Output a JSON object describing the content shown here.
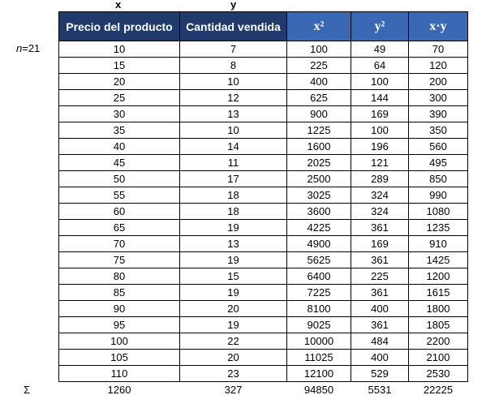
{
  "column_letters": [
    "x",
    "y"
  ],
  "n_label": {
    "symbol": "n",
    "value": "=21"
  },
  "table": {
    "headers": [
      "Precio del producto",
      "Cantidad vendida",
      "x²",
      "y²",
      "x·y"
    ],
    "rows": [
      [
        10,
        7,
        100,
        49,
        70
      ],
      [
        15,
        8,
        225,
        64,
        120
      ],
      [
        20,
        10,
        400,
        100,
        200
      ],
      [
        25,
        12,
        625,
        144,
        300
      ],
      [
        30,
        13,
        900,
        169,
        390
      ],
      [
        35,
        10,
        1225,
        100,
        350
      ],
      [
        40,
        14,
        1600,
        196,
        560
      ],
      [
        45,
        11,
        2025,
        121,
        495
      ],
      [
        50,
        17,
        2500,
        289,
        850
      ],
      [
        55,
        18,
        3025,
        324,
        990
      ],
      [
        60,
        18,
        3600,
        324,
        1080
      ],
      [
        65,
        19,
        4225,
        361,
        1235
      ],
      [
        70,
        13,
        4900,
        169,
        910
      ],
      [
        75,
        19,
        5625,
        361,
        1425
      ],
      [
        80,
        15,
        6400,
        225,
        1200
      ],
      [
        85,
        19,
        7225,
        361,
        1615
      ],
      [
        90,
        20,
        8100,
        400,
        1800
      ],
      [
        95,
        19,
        9025,
        361,
        1805
      ],
      [
        100,
        22,
        10000,
        484,
        2200
      ],
      [
        105,
        20,
        11025,
        400,
        2100
      ],
      [
        110,
        23,
        12100,
        529,
        2530
      ]
    ],
    "totals_symbol": "Σ",
    "totals": [
      1260,
      327,
      94850,
      5531,
      22225
    ]
  }
}
